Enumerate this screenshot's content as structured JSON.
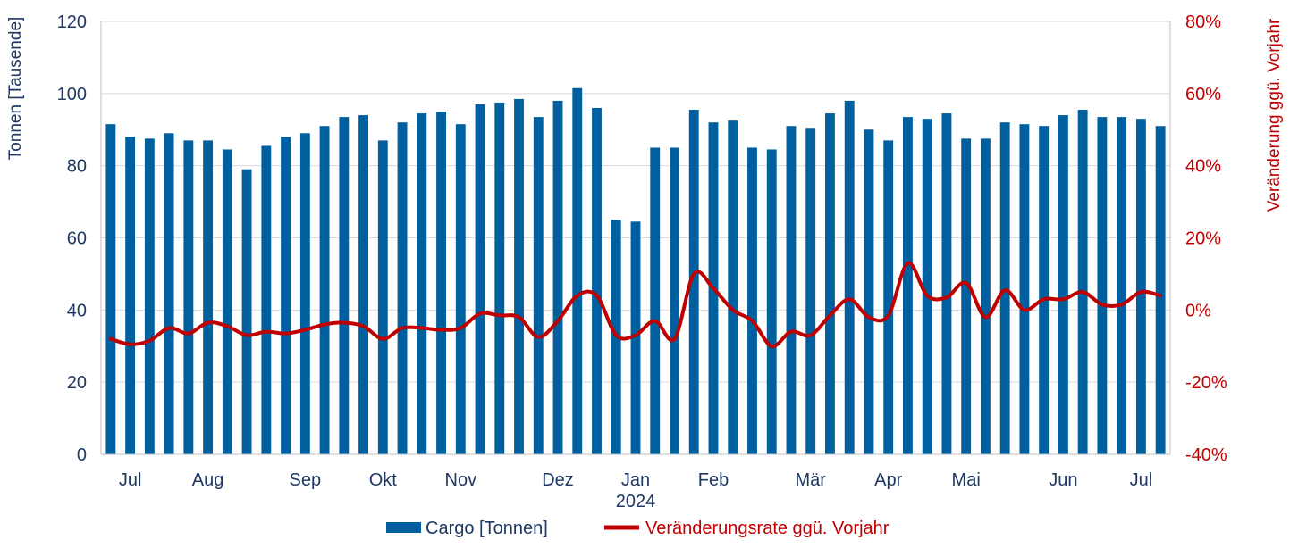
{
  "colors": {
    "bar": "#00609f",
    "line": "#c00000",
    "left_axis_text": "#1f3864",
    "right_axis_text": "#c00000",
    "grid": "#d9d9d9",
    "axis_line": "#bfbfbf"
  },
  "chart_data": {
    "type": "bar",
    "combo": "bar+line",
    "grid": true,
    "legend_position": "bottom",
    "ylabel_left": "Tonnen [Tausende]",
    "ylabel_right": "Veränderung ggü. Vorjahr",
    "ylim_left": [
      0,
      120
    ],
    "ylim_right": [
      -40,
      80
    ],
    "yticks_left": [
      "0",
      "20",
      "40",
      "60",
      "80",
      "100",
      "120"
    ],
    "yticks_right": [
      "-40%",
      "-20%",
      "0%",
      "20%",
      "40%",
      "60%",
      "80%"
    ],
    "month_labels": [
      {
        "label": "Jul",
        "index": 1
      },
      {
        "label": "Aug",
        "index": 5
      },
      {
        "label": "Sep",
        "index": 10
      },
      {
        "label": "Okt",
        "index": 14
      },
      {
        "label": "Nov",
        "index": 18
      },
      {
        "label": "Dez",
        "index": 23
      },
      {
        "label": "Jan",
        "index": 27
      },
      {
        "label": "Feb",
        "index": 31
      },
      {
        "label": "Mär",
        "index": 36
      },
      {
        "label": "Apr",
        "index": 40
      },
      {
        "label": "Mai",
        "index": 44
      },
      {
        "label": "Jun",
        "index": 49
      },
      {
        "label": "Jul",
        "index": 53
      }
    ],
    "year_label": {
      "label": "2024",
      "index": 27
    },
    "series": [
      {
        "name": "Cargo [Tonnen]",
        "type": "bar",
        "axis": "left",
        "values": [
          91.5,
          88.0,
          87.5,
          89.0,
          87.0,
          87.0,
          84.5,
          79.0,
          85.5,
          88.0,
          89.0,
          91.0,
          93.5,
          94.0,
          87.0,
          92.0,
          94.5,
          95.0,
          91.5,
          97.0,
          97.5,
          98.5,
          93.5,
          98.0,
          101.5,
          96.0,
          65.0,
          64.5,
          85.0,
          85.0,
          95.5,
          92.0,
          92.5,
          85.0,
          84.5,
          91.0,
          90.5,
          94.5,
          98.0,
          90.0,
          87.0,
          93.5,
          93.0,
          94.5,
          87.5,
          87.5,
          92.0,
          91.5,
          91.0,
          94.0,
          95.5,
          93.5,
          93.5,
          93.0,
          91.0
        ]
      },
      {
        "name": "Veränderungsrate ggü. Vorjahr",
        "type": "line",
        "axis": "right",
        "values": [
          -8.0,
          -9.5,
          -8.5,
          -5.0,
          -6.5,
          -3.5,
          -4.5,
          -7.0,
          -6.0,
          -6.5,
          -5.5,
          -4.0,
          -3.5,
          -4.5,
          -8.0,
          -5.0,
          -5.0,
          -5.5,
          -5.0,
          -1.0,
          -1.5,
          -2.0,
          -7.5,
          -3.0,
          4.0,
          4.0,
          -7.0,
          -7.0,
          -3.0,
          -8.0,
          10.0,
          6.0,
          0.0,
          -3.0,
          -10.0,
          -6.0,
          -7.0,
          -1.5,
          3.0,
          -2.0,
          -1.5,
          13.0,
          4.0,
          3.5,
          7.5,
          -2.0,
          5.5,
          0.0,
          3.0,
          3.0,
          5.0,
          1.5,
          1.5,
          5.0,
          4.0
        ]
      }
    ]
  }
}
